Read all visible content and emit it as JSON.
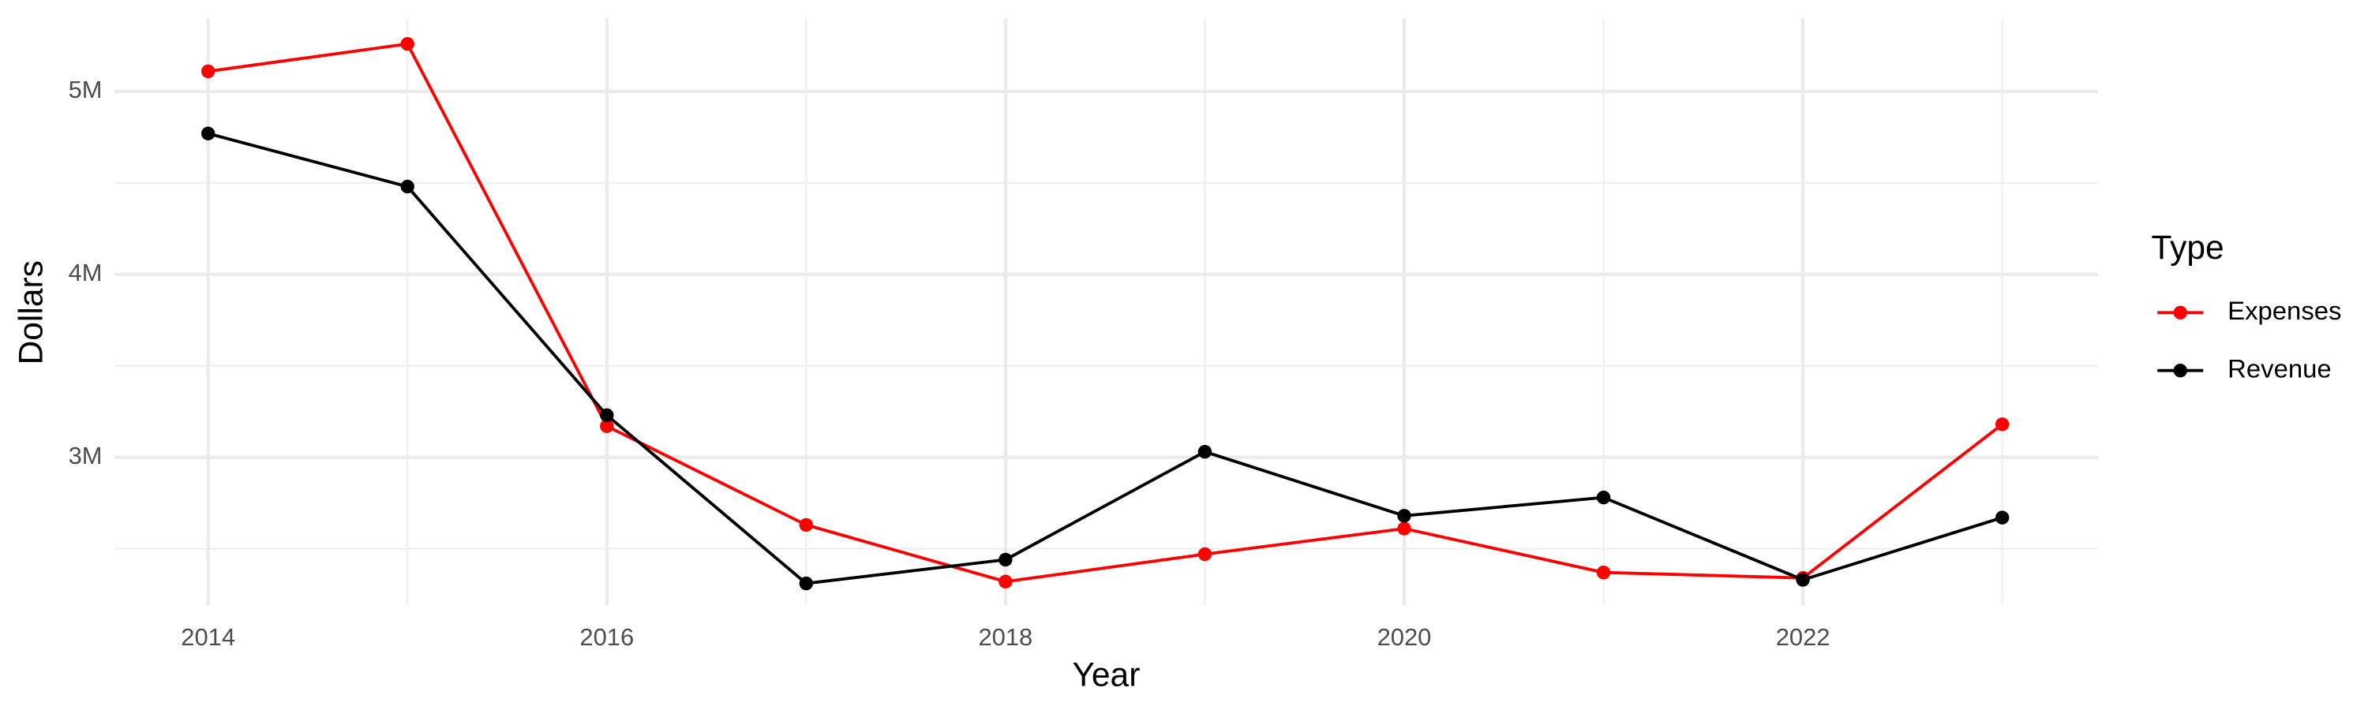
{
  "chart_data": {
    "type": "line",
    "x_label": "Year",
    "y_label": "Dollars",
    "legend_title": "Type",
    "legend_position": "right",
    "grid": true,
    "x": [
      2014,
      2015,
      2016,
      2017,
      2018,
      2019,
      2020,
      2021,
      2022,
      2023
    ],
    "series": [
      {
        "name": "Expenses",
        "color": "#ff0000",
        "values": [
          5110000,
          5260000,
          3170000,
          2630000,
          2320000,
          2470000,
          2610000,
          2370000,
          2340000,
          3180000
        ]
      },
      {
        "name": "Revenue",
        "color": "#000000",
        "values": [
          4770000,
          4480000,
          3230000,
          2310000,
          2440000,
          3030000,
          2680000,
          2780000,
          2330000,
          2670000
        ]
      }
    ],
    "xlim": [
      2013.53,
      2023.48
    ],
    "xticks": [
      2014,
      2016,
      2018,
      2020,
      2022
    ],
    "x_minor_grid": [
      2015,
      2017,
      2019,
      2021,
      2023
    ],
    "ylim": [
      2190000,
      5400000
    ],
    "yticks": [
      {
        "value": 3000000,
        "label": "3M"
      },
      {
        "value": 4000000,
        "label": "4M"
      },
      {
        "value": 5000000,
        "label": "5M"
      }
    ],
    "y_minor_grid": [
      2500000,
      3500000,
      4500000
    ]
  }
}
